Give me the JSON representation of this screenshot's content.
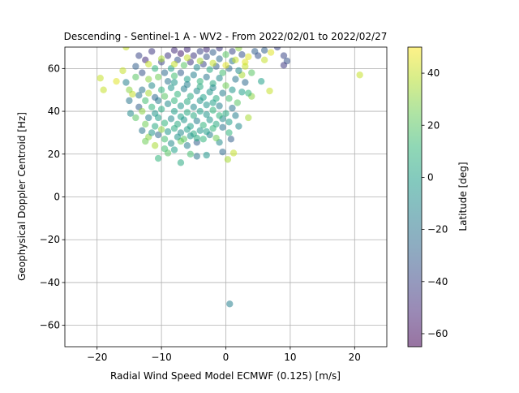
{
  "chart_data": {
    "type": "scatter",
    "title": "Descending - Sentinel-1 A - WV2 - From 2022/02/01 to 2022/02/27",
    "xlabel": "Radial Wind Speed Model ECMWF (0.125) [m/s]",
    "ylabel": "Geophysical Doppler Centroid [Hz]",
    "xlim": [
      -25,
      25
    ],
    "ylim": [
      -70,
      70
    ],
    "xticks": [
      -20,
      -10,
      0,
      10,
      20
    ],
    "yticks": [
      -60,
      -40,
      -20,
      0,
      20,
      40,
      60
    ],
    "grid": true,
    "colorbar": {
      "label": "Latitude [deg]",
      "range": [
        -65,
        50
      ],
      "ticks": [
        -60,
        -40,
        -20,
        0,
        20,
        40
      ],
      "colormap": "viridis",
      "alpha": 0.55
    },
    "marker_alpha": 0.55,
    "points": [
      {
        "x": 0.6,
        "y": -50.0,
        "lat": -15
      },
      {
        "x": -7.0,
        "y": 16.0,
        "lat": 5
      },
      {
        "x": -10.5,
        "y": 18.0,
        "lat": 10
      },
      {
        "x": -4.5,
        "y": 19.0,
        "lat": -20
      },
      {
        "x": -3.0,
        "y": 19.5,
        "lat": -5
      },
      {
        "x": -5.5,
        "y": 20.0,
        "lat": 15
      },
      {
        "x": -8.0,
        "y": 22.0,
        "lat": 0
      },
      {
        "x": 1.2,
        "y": 20.5,
        "lat": 40
      },
      {
        "x": 0.3,
        "y": 17.5,
        "lat": 35
      },
      {
        "x": -0.5,
        "y": 21.0,
        "lat": -25
      },
      {
        "x": -9.0,
        "y": 20.5,
        "lat": 20
      },
      {
        "x": -1.0,
        "y": 25.5,
        "lat": -10
      },
      {
        "x": 0.8,
        "y": 27.0,
        "lat": -30
      },
      {
        "x": 2.0,
        "y": 33.0,
        "lat": -10
      },
      {
        "x": 3.5,
        "y": 37.0,
        "lat": 35
      },
      {
        "x": 4.0,
        "y": 47.0,
        "lat": 30
      },
      {
        "x": 3.5,
        "y": 48.5,
        "lat": 10
      },
      {
        "x": 5.5,
        "y": 54.0,
        "lat": 0
      },
      {
        "x": 6.8,
        "y": 49.5,
        "lat": 40
      },
      {
        "x": 6.0,
        "y": 64.0,
        "lat": 40
      },
      {
        "x": 7.0,
        "y": 67.5,
        "lat": 45
      },
      {
        "x": 8.0,
        "y": 70.0,
        "lat": -40
      },
      {
        "x": 9.0,
        "y": 66.0,
        "lat": -40
      },
      {
        "x": 9.5,
        "y": 63.5,
        "lat": -35
      },
      {
        "x": 9.0,
        "y": 61.5,
        "lat": -45
      },
      {
        "x": 20.8,
        "y": 57.0,
        "lat": 40
      },
      {
        "x": -19.5,
        "y": 55.5,
        "lat": 40
      },
      {
        "x": -19.0,
        "y": 50.0,
        "lat": 40
      },
      {
        "x": -17.0,
        "y": 54.0,
        "lat": 45
      },
      {
        "x": -16.0,
        "y": 59.0,
        "lat": 40
      },
      {
        "x": -15.5,
        "y": 53.5,
        "lat": -15
      },
      {
        "x": -15.0,
        "y": 45.0,
        "lat": -20
      },
      {
        "x": -14.8,
        "y": 39.0,
        "lat": -10
      },
      {
        "x": -14.5,
        "y": 48.0,
        "lat": 40
      },
      {
        "x": -14.0,
        "y": 37.0,
        "lat": 20
      },
      {
        "x": -13.5,
        "y": 42.0,
        "lat": -30
      },
      {
        "x": -13.0,
        "y": 31.0,
        "lat": -20
      },
      {
        "x": -12.5,
        "y": 34.0,
        "lat": 25
      },
      {
        "x": -12.0,
        "y": 28.0,
        "lat": 30
      },
      {
        "x": -11.5,
        "y": 30.0,
        "lat": -5
      },
      {
        "x": -14.0,
        "y": 61.0,
        "lat": -30
      },
      {
        "x": -13.5,
        "y": 66.0,
        "lat": -40
      },
      {
        "x": -12.5,
        "y": 64.0,
        "lat": -50
      },
      {
        "x": -11.5,
        "y": 68.0,
        "lat": -45
      },
      {
        "x": -15.5,
        "y": 70.0,
        "lat": 40
      },
      {
        "x": 3.0,
        "y": 63.0,
        "lat": 45
      },
      {
        "x": 4.5,
        "y": 68.0,
        "lat": -30
      },
      {
        "x": 2.5,
        "y": 66.5,
        "lat": -35
      },
      {
        "x": 1.5,
        "y": 55.0,
        "lat": -20
      },
      {
        "x": 2.5,
        "y": 57.0,
        "lat": 35
      },
      {
        "x": 1.8,
        "y": 44.0,
        "lat": 20
      },
      {
        "x": 1.5,
        "y": 38.0,
        "lat": -15
      },
      {
        "x": 0.5,
        "y": 30.0,
        "lat": 10
      },
      {
        "x": -0.5,
        "y": 32.5,
        "lat": -20
      },
      {
        "x": -1.5,
        "y": 27.5,
        "lat": 25
      },
      {
        "x": -2.5,
        "y": 29.0,
        "lat": -15
      },
      {
        "x": -3.5,
        "y": 27.0,
        "lat": 10
      },
      {
        "x": -4.5,
        "y": 25.5,
        "lat": -30
      },
      {
        "x": -6.0,
        "y": 24.0,
        "lat": -15
      },
      {
        "x": -7.0,
        "y": 26.0,
        "lat": 25
      },
      {
        "x": -8.5,
        "y": 25.0,
        "lat": -10
      },
      {
        "x": -9.5,
        "y": 27.0,
        "lat": 15
      },
      {
        "x": -10.5,
        "y": 29.0,
        "lat": -25
      },
      {
        "x": -11.0,
        "y": 33.0,
        "lat": 5
      },
      {
        "x": -10.0,
        "y": 31.5,
        "lat": 30
      },
      {
        "x": -12.0,
        "y": 37.0,
        "lat": -15
      },
      {
        "x": -12.5,
        "y": 45.0,
        "lat": 15
      },
      {
        "x": -13.0,
        "y": 50.0,
        "lat": -20
      },
      {
        "x": -12.0,
        "y": 55.0,
        "lat": 30
      },
      {
        "x": -13.0,
        "y": 58.0,
        "lat": -35
      },
      {
        "x": -11.0,
        "y": 60.0,
        "lat": 10
      },
      {
        "x": -10.0,
        "y": 63.0,
        "lat": -40
      },
      {
        "x": -9.0,
        "y": 66.0,
        "lat": -45
      },
      {
        "x": -8.0,
        "y": 68.5,
        "lat": -50
      },
      {
        "x": -7.0,
        "y": 67.0,
        "lat": -55
      },
      {
        "x": -6.0,
        "y": 69.0,
        "lat": -50
      },
      {
        "x": -5.0,
        "y": 66.0,
        "lat": -45
      },
      {
        "x": -4.0,
        "y": 68.0,
        "lat": -40
      },
      {
        "x": -3.0,
        "y": 65.5,
        "lat": -35
      },
      {
        "x": -2.0,
        "y": 67.5,
        "lat": -30
      },
      {
        "x": -1.0,
        "y": 64.5,
        "lat": -25
      },
      {
        "x": 0.0,
        "y": 66.5,
        "lat": 20
      },
      {
        "x": 1.0,
        "y": 63.5,
        "lat": -20
      },
      {
        "x": 3.0,
        "y": 61.0,
        "lat": 40
      },
      {
        "x": 2.0,
        "y": 59.0,
        "lat": -10
      },
      {
        "x": 0.5,
        "y": 60.0,
        "lat": -25
      },
      {
        "x": -0.5,
        "y": 58.0,
        "lat": 15
      },
      {
        "x": -1.5,
        "y": 61.0,
        "lat": -30
      },
      {
        "x": -2.5,
        "y": 59.5,
        "lat": 5
      },
      {
        "x": -3.5,
        "y": 62.0,
        "lat": -40
      },
      {
        "x": -4.5,
        "y": 60.5,
        "lat": -10
      },
      {
        "x": -5.5,
        "y": 63.0,
        "lat": -45
      },
      {
        "x": -6.5,
        "y": 61.5,
        "lat": 20
      },
      {
        "x": -7.5,
        "y": 64.0,
        "lat": -35
      },
      {
        "x": -8.5,
        "y": 60.0,
        "lat": 0
      },
      {
        "x": -9.5,
        "y": 58.0,
        "lat": -25
      },
      {
        "x": -10.5,
        "y": 56.0,
        "lat": 25
      },
      {
        "x": -11.5,
        "y": 52.0,
        "lat": -10
      },
      {
        "x": -10.0,
        "y": 50.0,
        "lat": 10
      },
      {
        "x": -9.0,
        "y": 54.0,
        "lat": -20
      },
      {
        "x": -8.0,
        "y": 56.5,
        "lat": 15
      },
      {
        "x": -7.0,
        "y": 58.0,
        "lat": -30
      },
      {
        "x": -6.0,
        "y": 55.0,
        "lat": 0
      },
      {
        "x": -5.0,
        "y": 57.0,
        "lat": -15
      },
      {
        "x": -4.0,
        "y": 54.0,
        "lat": 10
      },
      {
        "x": -3.0,
        "y": 56.0,
        "lat": -20
      },
      {
        "x": -2.0,
        "y": 53.0,
        "lat": 5
      },
      {
        "x": -1.0,
        "y": 55.5,
        "lat": -10
      },
      {
        "x": 0.0,
        "y": 52.0,
        "lat": 25
      },
      {
        "x": 1.0,
        "y": 50.0,
        "lat": -5
      },
      {
        "x": 0.5,
        "y": 46.0,
        "lat": 15
      },
      {
        "x": -0.5,
        "y": 48.5,
        "lat": -15
      },
      {
        "x": -1.5,
        "y": 46.0,
        "lat": 5
      },
      {
        "x": -2.5,
        "y": 49.0,
        "lat": -5
      },
      {
        "x": -3.5,
        "y": 46.5,
        "lat": 0
      },
      {
        "x": -4.5,
        "y": 49.5,
        "lat": -10
      },
      {
        "x": -5.5,
        "y": 47.0,
        "lat": 5
      },
      {
        "x": -6.5,
        "y": 50.5,
        "lat": -15
      },
      {
        "x": -7.5,
        "y": 48.0,
        "lat": 10
      },
      {
        "x": -8.5,
        "y": 51.0,
        "lat": -5
      },
      {
        "x": -9.5,
        "y": 47.0,
        "lat": 20
      },
      {
        "x": -10.5,
        "y": 45.0,
        "lat": -15
      },
      {
        "x": -11.5,
        "y": 42.0,
        "lat": 10
      },
      {
        "x": -11.0,
        "y": 39.0,
        "lat": -5
      },
      {
        "x": -10.0,
        "y": 41.0,
        "lat": 5
      },
      {
        "x": -9.0,
        "y": 43.5,
        "lat": -10
      },
      {
        "x": -8.0,
        "y": 40.0,
        "lat": 0
      },
      {
        "x": -7.0,
        "y": 42.5,
        "lat": -5
      },
      {
        "x": -6.0,
        "y": 39.5,
        "lat": 5
      },
      {
        "x": -5.0,
        "y": 42.0,
        "lat": -10
      },
      {
        "x": -4.0,
        "y": 40.0,
        "lat": 0
      },
      {
        "x": -3.0,
        "y": 43.0,
        "lat": -5
      },
      {
        "x": -2.0,
        "y": 40.5,
        "lat": 10
      },
      {
        "x": -1.0,
        "y": 42.5,
        "lat": -15
      },
      {
        "x": 0.0,
        "y": 39.0,
        "lat": 5
      },
      {
        "x": 1.0,
        "y": 41.5,
        "lat": -20
      },
      {
        "x": 0.5,
        "y": 35.0,
        "lat": 0
      },
      {
        "x": -0.5,
        "y": 36.5,
        "lat": -10
      },
      {
        "x": -1.5,
        "y": 34.0,
        "lat": 5
      },
      {
        "x": -2.5,
        "y": 36.0,
        "lat": -5
      },
      {
        "x": -3.5,
        "y": 33.5,
        "lat": 10
      },
      {
        "x": -4.5,
        "y": 35.5,
        "lat": -15
      },
      {
        "x": -5.5,
        "y": 33.0,
        "lat": 0
      },
      {
        "x": -6.5,
        "y": 36.0,
        "lat": -5
      },
      {
        "x": -7.5,
        "y": 34.0,
        "lat": 5
      },
      {
        "x": -8.5,
        "y": 36.5,
        "lat": -10
      },
      {
        "x": -9.5,
        "y": 34.5,
        "lat": 10
      },
      {
        "x": -10.5,
        "y": 37.0,
        "lat": 0
      },
      {
        "x": -9.0,
        "y": 30.5,
        "lat": -5
      },
      {
        "x": -8.0,
        "y": 32.0,
        "lat": 5
      },
      {
        "x": -7.0,
        "y": 30.0,
        "lat": -10
      },
      {
        "x": -6.0,
        "y": 31.5,
        "lat": 0
      },
      {
        "x": -5.0,
        "y": 29.5,
        "lat": 5
      },
      {
        "x": -4.0,
        "y": 31.0,
        "lat": -5
      },
      {
        "x": -3.0,
        "y": 30.5,
        "lat": 0
      },
      {
        "x": -2.0,
        "y": 32.0,
        "lat": 10
      },
      {
        "x": -7.5,
        "y": 28.0,
        "lat": -5
      },
      {
        "x": -6.5,
        "y": 27.0,
        "lat": 20
      },
      {
        "x": -5.5,
        "y": 28.5,
        "lat": -5
      },
      {
        "x": -4.5,
        "y": 27.5,
        "lat": 5
      },
      {
        "x": -8.0,
        "y": 45.0,
        "lat": 10
      },
      {
        "x": -6.0,
        "y": 44.5,
        "lat": 5
      },
      {
        "x": -4.0,
        "y": 45.0,
        "lat": -5
      },
      {
        "x": -2.0,
        "y": 44.0,
        "lat": 0
      },
      {
        "x": -7.0,
        "y": 37.5,
        "lat": 0
      },
      {
        "x": -5.0,
        "y": 38.0,
        "lat": 5
      },
      {
        "x": -3.0,
        "y": 38.5,
        "lat": -5
      },
      {
        "x": -1.0,
        "y": 38.0,
        "lat": 10
      },
      {
        "x": -6.0,
        "y": 52.5,
        "lat": -15
      },
      {
        "x": -4.0,
        "y": 51.5,
        "lat": 5
      },
      {
        "x": -8.0,
        "y": 53.5,
        "lat": -5
      },
      {
        "x": -2.0,
        "y": 51.0,
        "lat": -10
      },
      {
        "x": -3.0,
        "y": 69.0,
        "lat": -50
      },
      {
        "x": -1.0,
        "y": 69.5,
        "lat": -45
      },
      {
        "x": 1.0,
        "y": 68.0,
        "lat": -40
      },
      {
        "x": 2.0,
        "y": 69.5,
        "lat": 30
      },
      {
        "x": 3.5,
        "y": 65.5,
        "lat": 45
      },
      {
        "x": 5.0,
        "y": 66.0,
        "lat": -35
      },
      {
        "x": 6.0,
        "y": 68.5,
        "lat": -30
      },
      {
        "x": 4.0,
        "y": 58.0,
        "lat": 20
      },
      {
        "x": 3.0,
        "y": 53.5,
        "lat": -25
      },
      {
        "x": 2.5,
        "y": 49.0,
        "lat": 0
      },
      {
        "x": -12.0,
        "y": 62.0,
        "lat": 40
      },
      {
        "x": -14.0,
        "y": 56.0,
        "lat": 20
      },
      {
        "x": -15.0,
        "y": 50.0,
        "lat": 30
      },
      {
        "x": -13.5,
        "y": 47.5,
        "lat": -20
      },
      {
        "x": -12.0,
        "y": 48.5,
        "lat": 35
      },
      {
        "x": -11.0,
        "y": 46.5,
        "lat": -25
      },
      {
        "x": -13.0,
        "y": 40.0,
        "lat": 30
      },
      {
        "x": -12.5,
        "y": 26.0,
        "lat": 25
      },
      {
        "x": -11.0,
        "y": 24.0,
        "lat": 35
      },
      {
        "x": -9.5,
        "y": 22.5,
        "lat": 15
      },
      {
        "x": -10.0,
        "y": 64.5,
        "lat": 35
      },
      {
        "x": -8.0,
        "y": 62.0,
        "lat": 40
      },
      {
        "x": -6.0,
        "y": 65.0,
        "lat": 40
      },
      {
        "x": -4.0,
        "y": 63.5,
        "lat": 35
      },
      {
        "x": -2.0,
        "y": 62.5,
        "lat": 40
      },
      {
        "x": 0.0,
        "y": 61.5,
        "lat": 45
      },
      {
        "x": 1.5,
        "y": 64.0,
        "lat": 40
      }
    ]
  }
}
